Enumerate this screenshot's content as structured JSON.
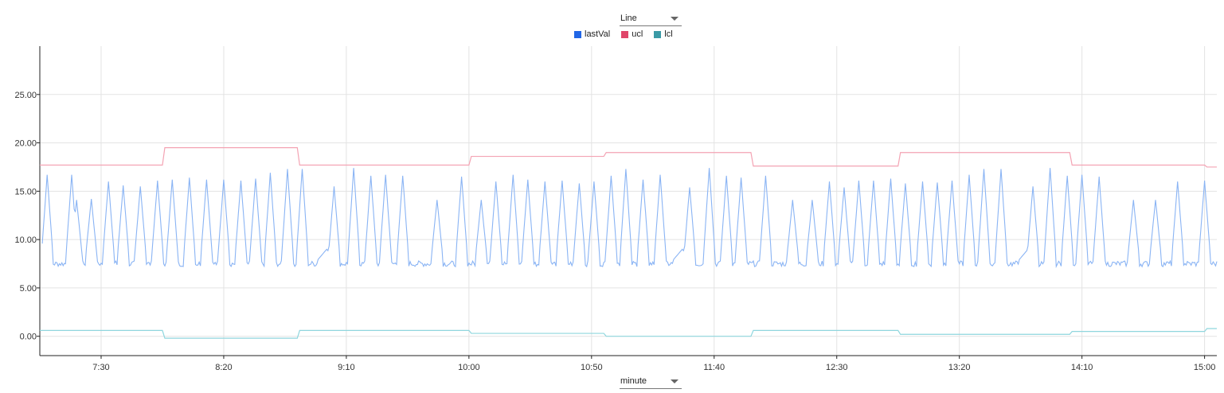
{
  "controls": {
    "chart_type": "Line",
    "interval": "minute"
  },
  "legend": [
    {
      "name": "lastVal",
      "color": "#2166e6"
    },
    {
      "name": "ucl",
      "color": "#e0466a"
    },
    {
      "name": "lcl",
      "color": "#3a9aa6"
    }
  ],
  "chart_data": {
    "type": "line",
    "x_unit": "time (HH:MM)",
    "x_range": [
      "07:05",
      "15:05"
    ],
    "ylim": [
      -2,
      30
    ],
    "y_ticks": [
      0,
      5,
      10,
      15,
      20,
      25
    ],
    "y_tick_labels": [
      "0.00",
      "5.00",
      "10.00",
      "15.00",
      "20.00",
      "25.00"
    ],
    "x_ticks": [
      "7:30",
      "8:20",
      "9:10",
      "10:00",
      "10:50",
      "11:40",
      "12:30",
      "13:20",
      "14:10",
      "15:00"
    ],
    "grid": true,
    "legend_position": "top-center",
    "series": [
      {
        "name": "ucl",
        "color": "#f4a3b3",
        "step": true,
        "points": [
          [
            "07:05",
            17.7
          ],
          [
            "07:55",
            19.5
          ],
          [
            "08:50",
            17.7
          ],
          [
            "10:00",
            18.6
          ],
          [
            "10:55",
            19.0
          ],
          [
            "11:55",
            17.6
          ],
          [
            "12:55",
            19.0
          ],
          [
            "14:05",
            17.7
          ],
          [
            "15:00",
            17.5
          ]
        ]
      },
      {
        "name": "lcl",
        "color": "#8fd6de",
        "step": true,
        "points": [
          [
            "07:05",
            0.6
          ],
          [
            "07:55",
            -0.2
          ],
          [
            "08:50",
            0.6
          ],
          [
            "10:00",
            0.3
          ],
          [
            "10:55",
            0.0
          ],
          [
            "11:55",
            0.6
          ],
          [
            "12:55",
            0.2
          ],
          [
            "14:05",
            0.5
          ],
          [
            "15:00",
            0.8
          ]
        ]
      },
      {
        "name": "lastVal",
        "color": "#8ab4f4",
        "baseline_range": [
          7.2,
          7.8
        ],
        "points": [
          [
            "07:08",
            16.7
          ],
          [
            "07:18",
            16.7
          ],
          [
            "07:20",
            14.1
          ],
          [
            "07:26",
            14.2
          ],
          [
            "07:33",
            16.0
          ],
          [
            "07:39",
            15.6
          ],
          [
            "07:46",
            15.5
          ],
          [
            "07:53",
            16.1
          ],
          [
            "07:59",
            16.2
          ],
          [
            "08:06",
            16.4
          ],
          [
            "08:13",
            16.2
          ],
          [
            "08:20",
            16.2
          ],
          [
            "08:27",
            16.1
          ],
          [
            "08:33",
            16.3
          ],
          [
            "08:39",
            16.9
          ],
          [
            "08:46",
            17.3
          ],
          [
            "08:52",
            17.3
          ],
          [
            "09:05",
            15.5
          ],
          [
            "09:13",
            17.4
          ],
          [
            "09:20",
            16.6
          ],
          [
            "09:26",
            16.7
          ],
          [
            "09:33",
            16.6
          ],
          [
            "09:47",
            14.1
          ],
          [
            "09:57",
            16.5
          ],
          [
            "10:05",
            14.1
          ],
          [
            "10:11",
            16.0
          ],
          [
            "10:18",
            16.7
          ],
          [
            "10:24",
            16.2
          ],
          [
            "10:31",
            16.0
          ],
          [
            "10:38",
            16.1
          ],
          [
            "10:45",
            15.8
          ],
          [
            "10:51",
            16.0
          ],
          [
            "10:58",
            16.6
          ],
          [
            "11:04",
            17.3
          ],
          [
            "11:11",
            16.2
          ],
          [
            "11:18",
            16.7
          ],
          [
            "11:30",
            15.4
          ],
          [
            "11:38",
            17.4
          ],
          [
            "11:45",
            16.6
          ],
          [
            "11:51",
            16.4
          ],
          [
            "12:01",
            16.6
          ],
          [
            "12:12",
            14.1
          ],
          [
            "12:20",
            14.1
          ],
          [
            "12:27",
            16.0
          ],
          [
            "12:33",
            15.4
          ],
          [
            "12:39",
            16.1
          ],
          [
            "12:45",
            16.1
          ],
          [
            "12:52",
            16.3
          ],
          [
            "12:58",
            15.8
          ],
          [
            "13:05",
            16.0
          ],
          [
            "13:11",
            15.9
          ],
          [
            "13:17",
            16.1
          ],
          [
            "13:24",
            16.7
          ],
          [
            "13:30",
            17.3
          ],
          [
            "13:37",
            17.3
          ],
          [
            "13:50",
            15.5
          ],
          [
            "13:57",
            17.4
          ],
          [
            "14:04",
            16.6
          ],
          [
            "14:10",
            16.7
          ],
          [
            "14:17",
            16.5
          ],
          [
            "14:31",
            14.1
          ],
          [
            "14:40",
            14.1
          ],
          [
            "14:49",
            16.0
          ],
          [
            "15:00",
            16.1
          ]
        ],
        "bumps": [
          [
            "09:02",
            9.0
          ],
          [
            "11:27",
            9.0
          ],
          [
            "13:48",
            9.0
          ]
        ]
      }
    ]
  }
}
